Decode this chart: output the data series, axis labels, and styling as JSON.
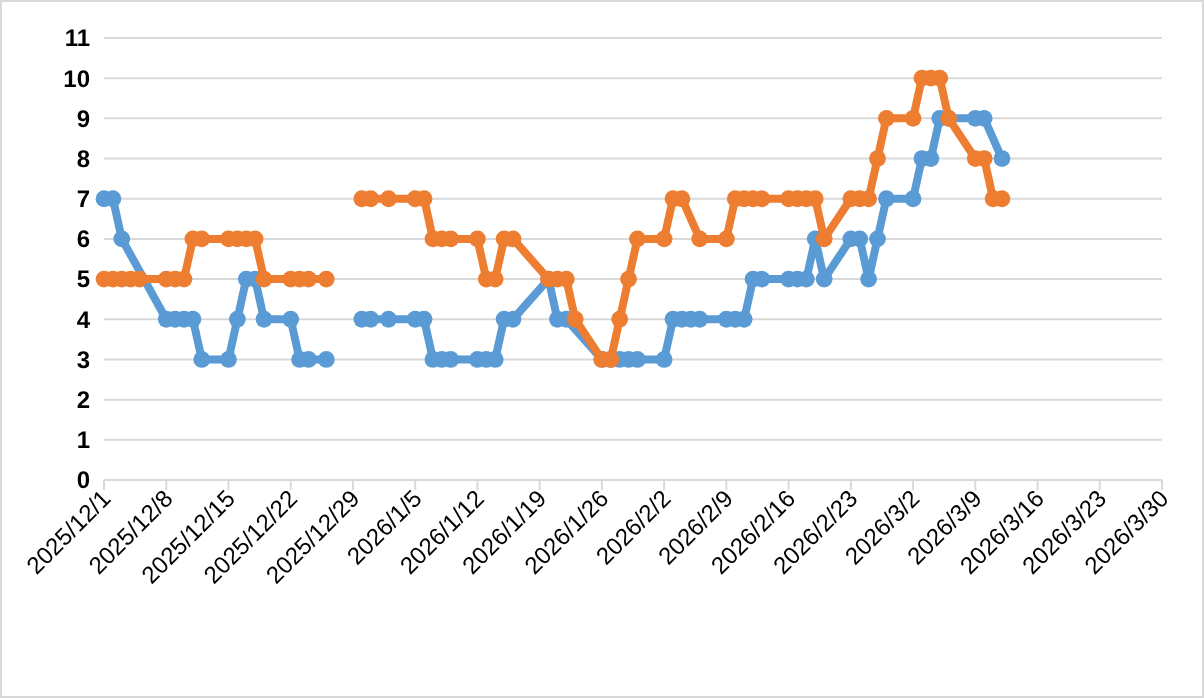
{
  "chart_data": {
    "type": "line",
    "xlim": [
      "2025-12-01",
      "2026-03-30"
    ],
    "xticks": [
      {
        "value": "2025-12-01",
        "label": "2025/12/1"
      },
      {
        "value": "2025-12-08",
        "label": "2025/12/8"
      },
      {
        "value": "2025-12-15",
        "label": "2025/12/15"
      },
      {
        "value": "2025-12-22",
        "label": "2025/12/22"
      },
      {
        "value": "2025-12-29",
        "label": "2025/12/29"
      },
      {
        "value": "2026-01-05",
        "label": "2026/1/5"
      },
      {
        "value": "2026-01-12",
        "label": "2026/1/12"
      },
      {
        "value": "2026-01-19",
        "label": "2026/1/19"
      },
      {
        "value": "2026-01-26",
        "label": "2026/1/26"
      },
      {
        "value": "2026-02-02",
        "label": "2026/2/2"
      },
      {
        "value": "2026-02-09",
        "label": "2026/2/9"
      },
      {
        "value": "2026-02-16",
        "label": "2026/2/16"
      },
      {
        "value": "2026-02-23",
        "label": "2026/2/23"
      },
      {
        "value": "2026-03-02",
        "label": "2026/3/2"
      },
      {
        "value": "2026-03-09",
        "label": "2026/3/9"
      },
      {
        "value": "2026-03-16",
        "label": "2026/3/16"
      },
      {
        "value": "2026-03-23",
        "label": "2026/3/23"
      },
      {
        "value": "2026-03-30",
        "label": "2026/3/30"
      }
    ],
    "ylim": [
      0,
      11
    ],
    "yticks": [
      0,
      1,
      2,
      3,
      4,
      5,
      6,
      7,
      8,
      9,
      10,
      11
    ],
    "grid": "y",
    "marker": "circle",
    "line_style": "solid",
    "series": [
      {
        "color": "#5b9bd5",
        "x": [
          "2025-12-01",
          "2025-12-02",
          "2025-12-03",
          "2025-12-08",
          "2025-12-09",
          "2025-12-10",
          "2025-12-11",
          "2025-12-12",
          "2025-12-15",
          "2025-12-16",
          "2025-12-17",
          "2025-12-18",
          "2025-12-19",
          "2025-12-22",
          "2025-12-23",
          "2025-12-24",
          "2025-12-26",
          "2025-12-29",
          "2025-12-30",
          "2025-12-31",
          "2026-01-02",
          "2026-01-05",
          "2026-01-06",
          "2026-01-07",
          "2026-01-08",
          "2026-01-09",
          "2026-01-12",
          "2026-01-13",
          "2026-01-14",
          "2026-01-15",
          "2026-01-16",
          "2026-01-20",
          "2026-01-21",
          "2026-01-22",
          "2026-01-26",
          "2026-01-27",
          "2026-01-28",
          "2026-01-29",
          "2026-01-30",
          "2026-02-02",
          "2026-02-03",
          "2026-02-04",
          "2026-02-05",
          "2026-02-06",
          "2026-02-09",
          "2026-02-10",
          "2026-02-11",
          "2026-02-12",
          "2026-02-13",
          "2026-02-16",
          "2026-02-17",
          "2026-02-18",
          "2026-02-19",
          "2026-02-20",
          "2026-02-23",
          "2026-02-24",
          "2026-02-25",
          "2026-02-26",
          "2026-02-27",
          "2026-03-02",
          "2026-03-03",
          "2026-03-04",
          "2026-03-05",
          "2026-03-06",
          "2026-03-09",
          "2026-03-10",
          "2026-03-12"
        ],
        "values": [
          7,
          7,
          6,
          4,
          4,
          4,
          4,
          3,
          3,
          4,
          5,
          5,
          4,
          4,
          3,
          3,
          3,
          null,
          4,
          4,
          4,
          4,
          4,
          3,
          3,
          3,
          3,
          3,
          3,
          4,
          4,
          5,
          4,
          4,
          3,
          3,
          3,
          3,
          3,
          3,
          4,
          4,
          4,
          4,
          4,
          4,
          4,
          5,
          5,
          5,
          5,
          5,
          6,
          5,
          6,
          6,
          5,
          6,
          7,
          7,
          8,
          8,
          9,
          9,
          9,
          9,
          8
        ]
      },
      {
        "color": "#ed7d31",
        "x": [
          "2025-12-01",
          "2025-12-02",
          "2025-12-03",
          "2025-12-04",
          "2025-12-05",
          "2025-12-08",
          "2025-12-09",
          "2025-12-10",
          "2025-12-11",
          "2025-12-12",
          "2025-12-15",
          "2025-12-16",
          "2025-12-17",
          "2025-12-18",
          "2025-12-19",
          "2025-12-22",
          "2025-12-23",
          "2025-12-24",
          "2025-12-26",
          "2025-12-29",
          "2025-12-30",
          "2025-12-31",
          "2026-01-02",
          "2026-01-05",
          "2026-01-06",
          "2026-01-07",
          "2026-01-08",
          "2026-01-09",
          "2026-01-12",
          "2026-01-13",
          "2026-01-14",
          "2026-01-15",
          "2026-01-16",
          "2026-01-20",
          "2026-01-21",
          "2026-01-22",
          "2026-01-23",
          "2026-01-26",
          "2026-01-27",
          "2026-01-28",
          "2026-01-29",
          "2026-01-30",
          "2026-02-02",
          "2026-02-03",
          "2026-02-04",
          "2026-02-06",
          "2026-02-09",
          "2026-02-10",
          "2026-02-11",
          "2026-02-12",
          "2026-02-13",
          "2026-02-16",
          "2026-02-17",
          "2026-02-18",
          "2026-02-19",
          "2026-02-20",
          "2026-02-23",
          "2026-02-24",
          "2026-02-25",
          "2026-02-26",
          "2026-02-27",
          "2026-03-02",
          "2026-03-03",
          "2026-03-04",
          "2026-03-05",
          "2026-03-06",
          "2026-03-09",
          "2026-03-10",
          "2026-03-11",
          "2026-03-12"
        ],
        "values": [
          5,
          5,
          5,
          5,
          5,
          5,
          5,
          5,
          6,
          6,
          6,
          6,
          6,
          6,
          5,
          5,
          5,
          5,
          5,
          null,
          7,
          7,
          7,
          7,
          7,
          6,
          6,
          6,
          6,
          5,
          5,
          6,
          6,
          5,
          5,
          5,
          4,
          3,
          3,
          4,
          5,
          6,
          6,
          7,
          7,
          6,
          6,
          7,
          7,
          7,
          7,
          7,
          7,
          7,
          7,
          6,
          7,
          7,
          7,
          8,
          9,
          9,
          10,
          10,
          10,
          9,
          8,
          8,
          7,
          7
        ]
      }
    ]
  }
}
